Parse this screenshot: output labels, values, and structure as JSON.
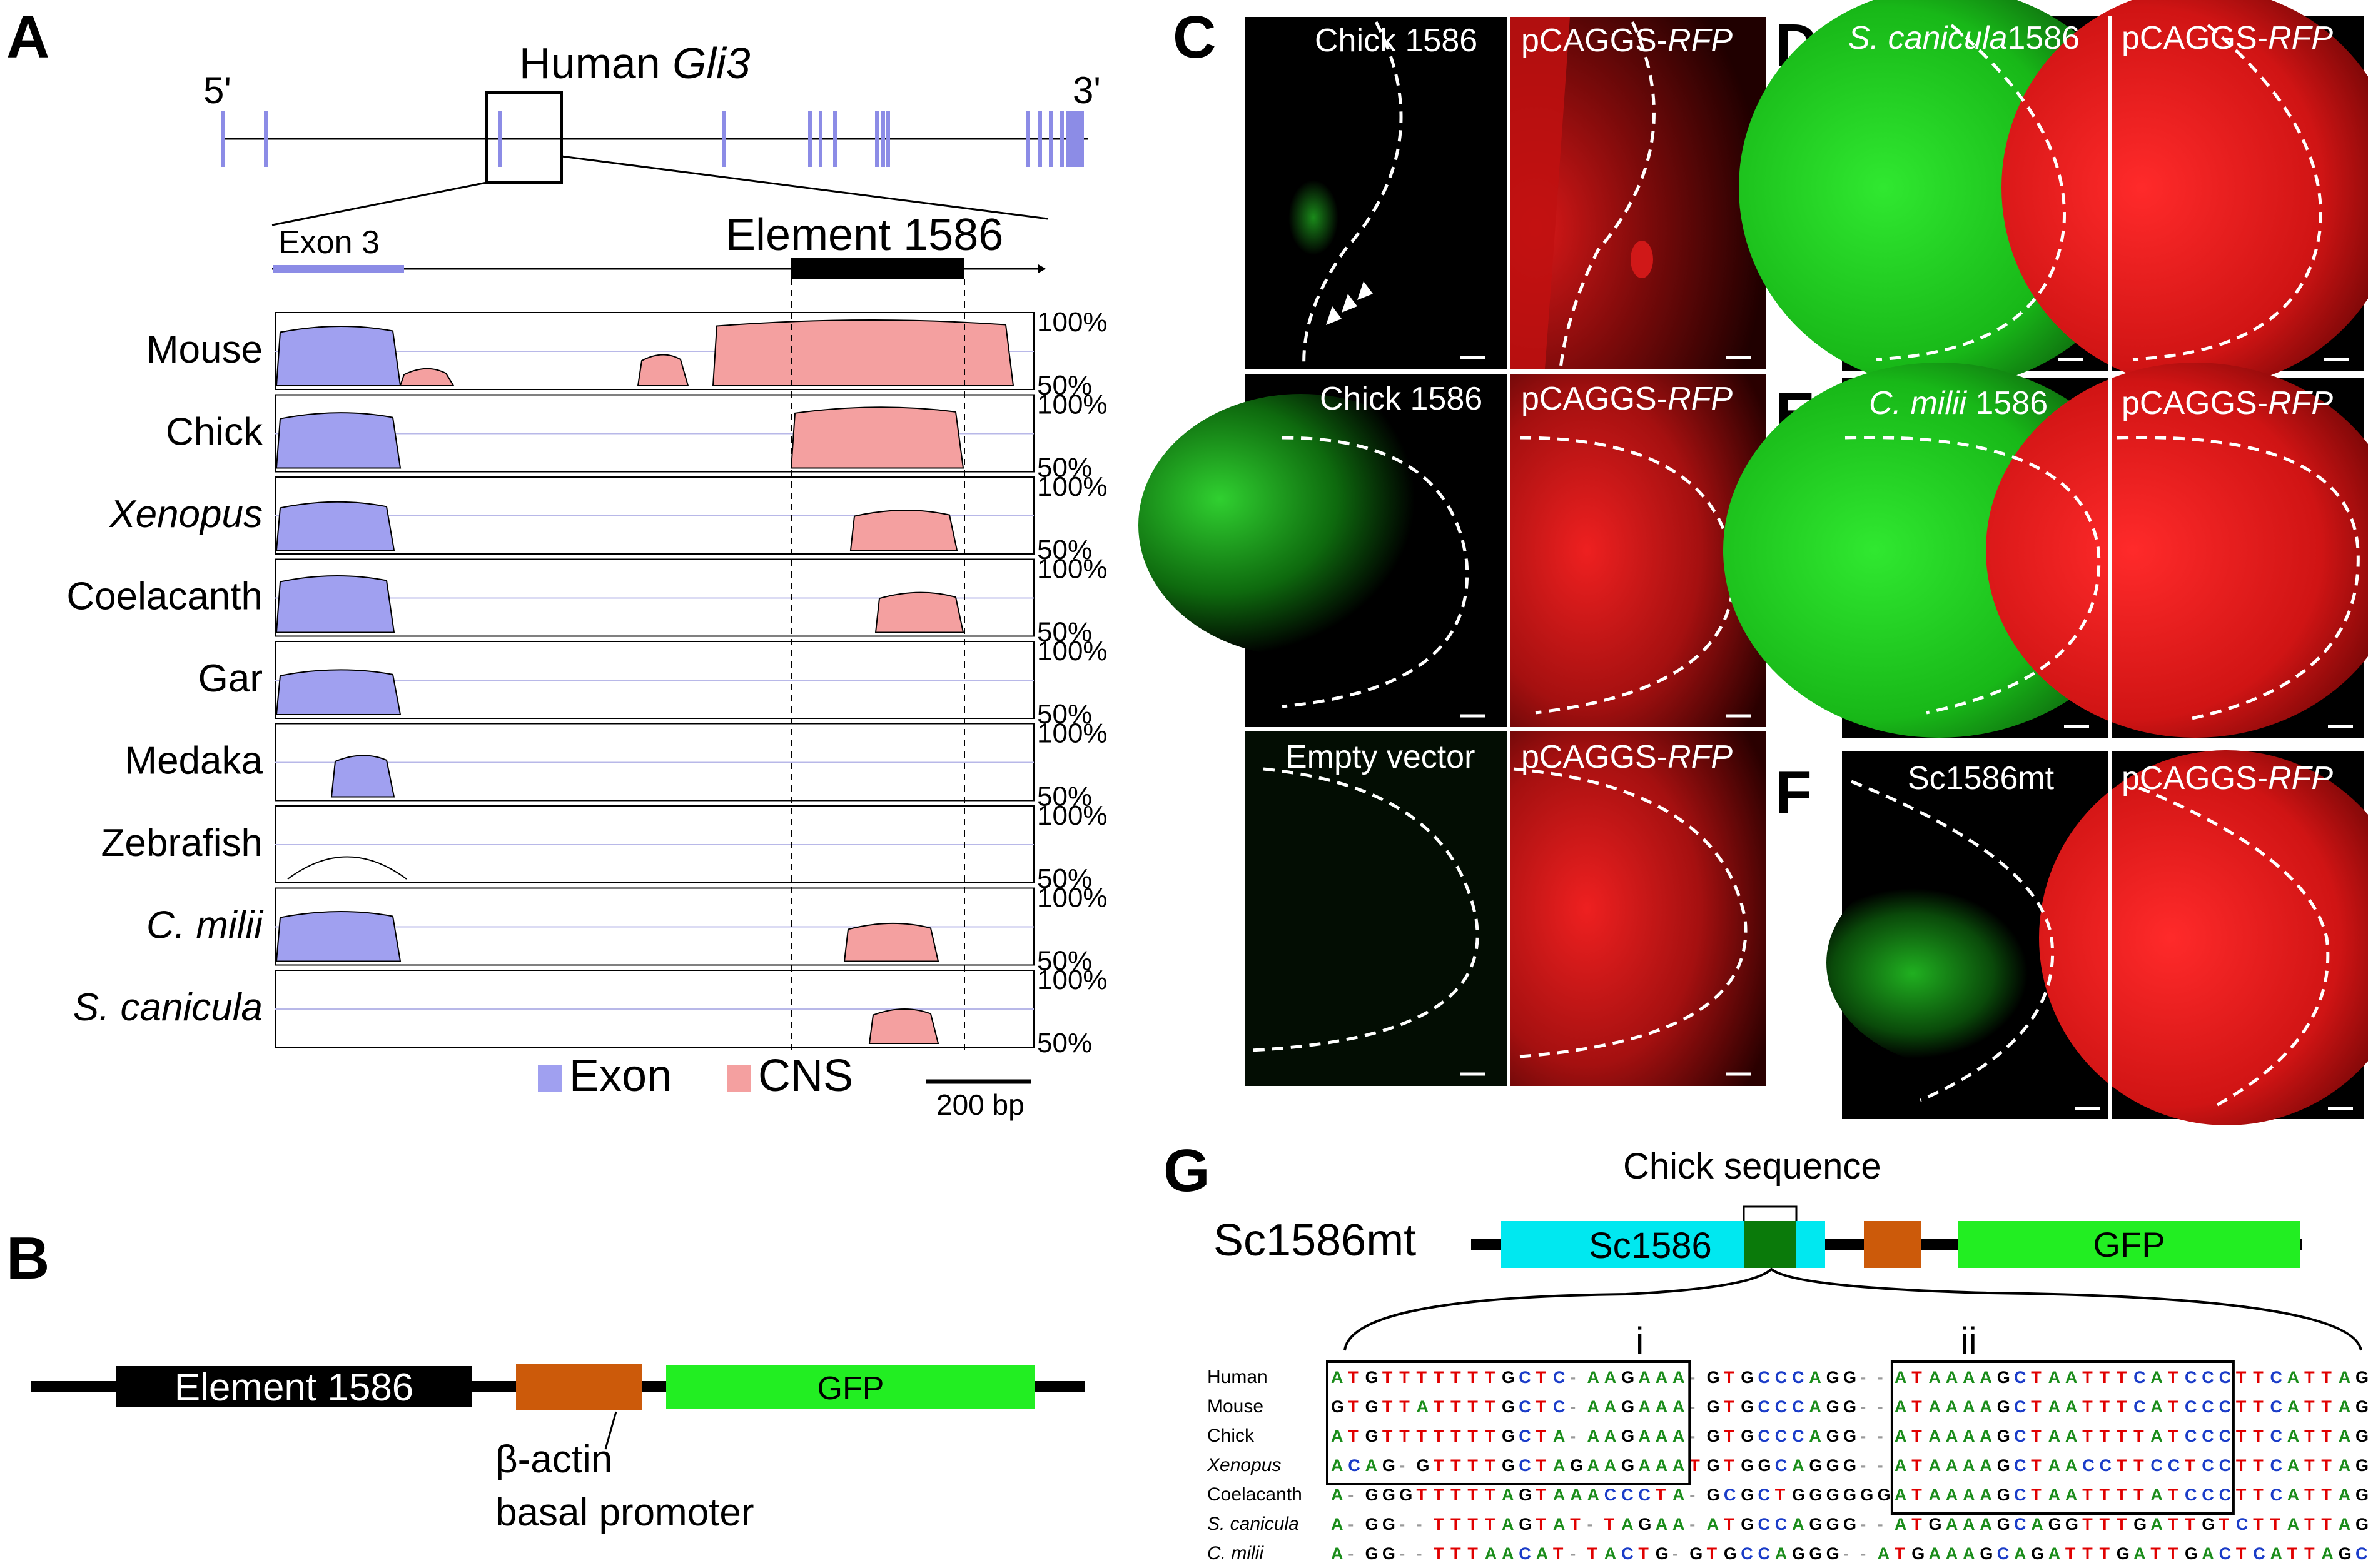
{
  "panels": {
    "A": "A",
    "B": "B",
    "C": "C",
    "D": "D",
    "E": "E",
    "F": "F",
    "G": "G"
  },
  "panelA": {
    "gene_title_prefix": "Human ",
    "gene_title_italic": "Gli3",
    "five_prime": "5'",
    "three_prime": "3'",
    "exon3_label": "Exon 3",
    "element_label": "Element 1586",
    "pct_high": "100%",
    "pct_low": "50%",
    "species": [
      {
        "name": "Mouse",
        "italic": false
      },
      {
        "name": "Chick",
        "italic": false
      },
      {
        "name": "Xenopus",
        "italic": true
      },
      {
        "name": "Coelacanth",
        "italic": false
      },
      {
        "name": "Gar",
        "italic": false
      },
      {
        "name": "Medaka",
        "italic": false
      },
      {
        "name": "Zebrafish",
        "italic": false
      },
      {
        "name": "C. milii",
        "italic": true
      },
      {
        "name": "S. canicula",
        "italic": true
      }
    ],
    "legend_exon": "Exon",
    "legend_cns": "CNS",
    "scale_label": "200 bp",
    "colors": {
      "exon": "#a0a0f0",
      "cns": "#f4a0a0",
      "exon_line": "#8c8ce6"
    }
  },
  "panelB": {
    "element_label": "Element 1586",
    "gfp_label": "GFP",
    "promoter_line1": "β-actin",
    "promoter_line2": "basal promoter",
    "colors": {
      "element": "#000000",
      "promoter": "#cc5a0a",
      "gfp": "#22ee22"
    }
  },
  "panelC": {
    "rows": [
      {
        "left": "Chick 1586",
        "right_prefix": "pCAGGS-",
        "right_italic": "RFP"
      },
      {
        "left": "Chick 1586",
        "right_prefix": "pCAGGS-",
        "right_italic": "RFP"
      },
      {
        "left": "Empty vector",
        "right_prefix": "pCAGGS-",
        "right_italic": "RFP"
      }
    ]
  },
  "panelD": {
    "left_italic": "S. canicula",
    "left_rest": "1586",
    "right_prefix": "pCAGGS-",
    "right_italic": "RFP"
  },
  "panelE": {
    "left_italic": "C. milii",
    "left_rest": " 1586",
    "right_prefix": "pCAGGS-",
    "right_italic": "RFP"
  },
  "panelF": {
    "left": "Sc1586mt",
    "right_prefix": "pCAGGS-",
    "right_italic": "RFP"
  },
  "panelG": {
    "construct_label": "Sc1586mt",
    "sc_label": "Sc1586",
    "gfp_label": "GFP",
    "chick_seq_label": "Chick sequence",
    "box_i": "i",
    "box_ii": "ii",
    "colors": {
      "sc": "#00e8f0",
      "chick": "#0a7a0a",
      "promoter": "#cc5a0a",
      "gfp": "#22ee22",
      "A": "#1a8c1a",
      "T": "#e00000",
      "G": "#000000",
      "C": "#1a3cc8"
    },
    "alignment": [
      {
        "species": "Human",
        "italic": false,
        "seq": "ATGTTTTTTTGCTC-AAGAAA-GTGCCCAGG--ATAAAAGCTAATTTCATCCCTTCATTAGTTGG-CTTGC"
      },
      {
        "species": "Mouse",
        "italic": false,
        "seq": "GTGTTATTTTGCTC-AAGAAA-GTGCCCAGG--ATAAAAGCTAATTTCATCCCTTCATTAGTTGG-CT-GC"
      },
      {
        "species": "Chick",
        "italic": false,
        "seq": "ATGTTTTTTTGCTA-AAGAAA-GTGCCCAGG--ATAAAAGCTAATTTTATCCCTTCATTAGTTGGGCTAGC"
      },
      {
        "species": "Xenopus",
        "italic": true,
        "seq": "ACAG-GTTTTGCTAGAAGAAATGTGGCAGGG--ATAAAAGCTAACCTTCCTCCTTCATTAGTGAG-TAAGC"
      },
      {
        "species": "Coelacanth",
        "italic": false,
        "seq": "A-GGGTTTTTAGTAAACCCTA-GCGCTGGGGGGATAAAAGCTAATTTTATCCCTTCATTAGTAGG-TTGGC"
      },
      {
        "species": "S. canicula",
        "italic": true,
        "seq": "A-GG--TTTTAGTAT-TAGAA-ATGCCAGGG--ATGAAAGCAGGTTTGATTGTCTTATTAGC----TTAGC"
      },
      {
        "species": "C. milii",
        "italic": true,
        "seq": "A-GG--TTTAACAT-TACTG-GTGCCAGGG--ATGAAAGCAGATTTGATTGACTCATTAGC----TTGGC"
      }
    ]
  }
}
